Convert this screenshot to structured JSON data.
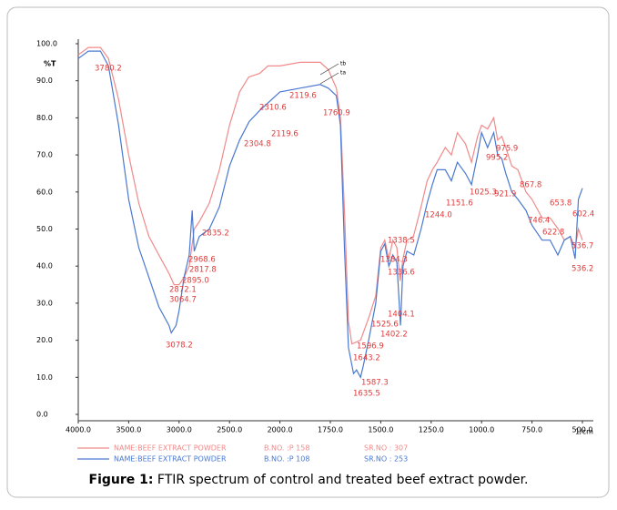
{
  "chart_data": {
    "type": "line",
    "y_axis_label": "%T",
    "x_axis_label": "1/cm",
    "caption": {
      "label": "Figure 1:",
      "text": " FTIR spectrum of control and treated beef extract powder."
    },
    "xlim": [
      4000,
      500
    ],
    "xticks": [
      {
        "value": 4000,
        "label": "4000.0"
      },
      {
        "value": 3500,
        "label": "3500.0"
      },
      {
        "value": 3000,
        "label": "3000.0"
      },
      {
        "value": 2500,
        "label": "2500.0"
      },
      {
        "value": 2000,
        "label": "2000.0"
      },
      {
        "value": 1750,
        "label": "1750.0"
      },
      {
        "value": 1500,
        "label": "1500.0"
      },
      {
        "value": 1250,
        "label": "1250.0"
      },
      {
        "value": 1000,
        "label": "1000.0"
      },
      {
        "value": 750,
        "label": "750.0"
      },
      {
        "value": 500,
        "label": "500.0"
      }
    ],
    "ylim": [
      0,
      100
    ],
    "yticks": [
      {
        "value": 0,
        "label": "0.0"
      },
      {
        "value": 10,
        "label": "10.0"
      },
      {
        "value": 20,
        "label": "20.0"
      },
      {
        "value": 30,
        "label": "30.0"
      },
      {
        "value": 40,
        "label": "40.0"
      },
      {
        "value": 50,
        "label": "50.0"
      },
      {
        "value": 60,
        "label": "60.0"
      },
      {
        "value": 70,
        "label": "70.0"
      },
      {
        "value": 80,
        "label": "80.0"
      },
      {
        "value": 90,
        "label": "90.0"
      },
      {
        "value": 100,
        "label": "100.0"
      }
    ],
    "series": [
      {
        "name": "NAME:BEEF EXTRACT POWDER",
        "batch": "B.NO. :P 158",
        "serial": "SR.NO : 307",
        "tag": "tb",
        "color": "#f08a8a",
        "x": [
          4000,
          3900,
          3780,
          3700,
          3600,
          3500,
          3400,
          3300,
          3200,
          3100,
          3050,
          3000,
          2950,
          2900,
          2850,
          2800,
          2700,
          2600,
          2500,
          2400,
          2310,
          2200,
          2119,
          2000,
          1900,
          1800,
          1760,
          1720,
          1700,
          1680,
          1660,
          1643,
          1600,
          1560,
          1525,
          1500,
          1480,
          1460,
          1440,
          1420,
          1404,
          1390,
          1370,
          1338,
          1300,
          1270,
          1244,
          1220,
          1180,
          1150,
          1120,
          1080,
          1050,
          1020,
          1000,
          970,
          940,
          920,
          900,
          880,
          850,
          820,
          780,
          750,
          700,
          660,
          620,
          590,
          560,
          536,
          520,
          500
        ],
        "values": [
          97,
          99,
          99,
          96,
          85,
          70,
          57,
          48,
          43,
          38,
          35,
          35,
          37,
          40,
          50,
          52,
          57,
          66,
          78,
          87,
          91,
          92,
          94,
          94,
          95,
          95,
          93,
          88,
          80,
          55,
          25,
          19,
          20,
          26,
          32,
          45,
          47,
          42,
          47,
          45,
          36,
          42,
          47,
          48,
          56,
          63,
          66,
          68,
          72,
          70,
          76,
          73,
          68,
          75,
          78,
          77,
          80,
          74,
          75,
          72,
          67,
          66,
          60,
          58,
          53,
          53,
          50,
          47,
          48,
          45,
          50,
          47
        ]
      },
      {
        "name": "NAME:BEEF EXTRACT POWDER",
        "batch": "B.NO. :P 108",
        "serial": "SR.NO : 253",
        "tag": "ta",
        "color": "#4a78d0",
        "x": [
          4000,
          3900,
          3780,
          3700,
          3600,
          3500,
          3400,
          3300,
          3200,
          3100,
          3078,
          3030,
          3000,
          2950,
          2900,
          2870,
          2850,
          2800,
          2700,
          2600,
          2500,
          2400,
          2305,
          2200,
          2119,
          2000,
          1900,
          1800,
          1760,
          1720,
          1700,
          1680,
          1660,
          1635,
          1620,
          1600,
          1587,
          1560,
          1525,
          1500,
          1480,
          1460,
          1440,
          1420,
          1402,
          1390,
          1370,
          1336,
          1300,
          1270,
          1244,
          1220,
          1180,
          1150,
          1120,
          1080,
          1050,
          1020,
          1000,
          970,
          940,
          920,
          900,
          880,
          850,
          820,
          780,
          750,
          700,
          660,
          622,
          590,
          560,
          536,
          520,
          500
        ],
        "values": [
          96,
          98,
          98,
          94,
          78,
          58,
          45,
          37,
          29,
          24,
          22,
          24,
          28,
          37,
          43,
          55,
          44,
          48,
          50,
          56,
          67,
          74,
          79,
          82,
          84,
          87,
          88,
          89,
          88,
          86,
          78,
          45,
          18,
          11,
          12,
          10,
          13,
          20,
          30,
          44,
          46,
          40,
          43,
          41,
          24,
          40,
          44,
          43,
          50,
          57,
          62,
          66,
          66,
          63,
          68,
          65,
          62,
          70,
          76,
          72,
          76,
          70,
          69,
          65,
          60,
          58,
          55,
          51,
          47,
          47,
          43,
          47,
          48,
          42,
          58,
          61
        ]
      }
    ],
    "annotations": [
      "3780.2",
      "2119.6",
      "2310.6",
      "1760.9",
      "2119.6",
      "2304.8",
      "2835.2",
      "2968.6",
      "2817.8",
      "2895.0",
      "2872.1",
      "3064.7",
      "3078.2",
      "1338.5",
      "1384.3",
      "1336.6",
      "1404.1",
      "1525.6",
      "1402.2",
      "1596.9",
      "1643.2",
      "1587.3",
      "1635.5",
      "1244.0",
      "1151.6",
      "1025.3",
      "995.2",
      "975.9",
      "921.9",
      "867.8",
      "653.8",
      "746.4",
      "622.8",
      "602.4",
      "536.7",
      "536.2"
    ]
  }
}
